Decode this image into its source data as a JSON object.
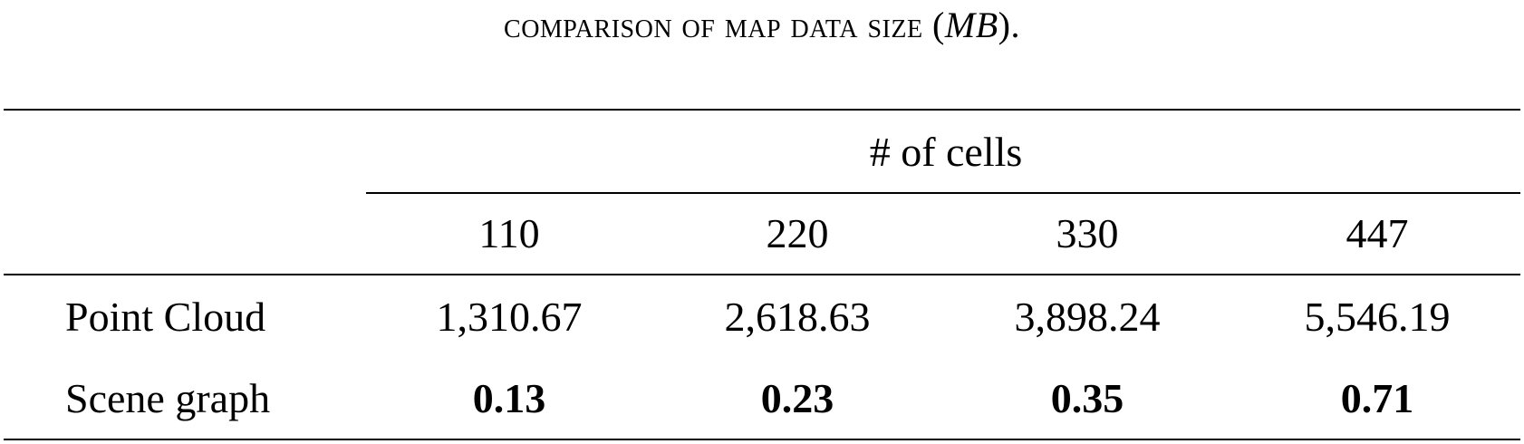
{
  "caption": {
    "text": "comparison of map data size (",
    "math": "MB",
    "suffix": ")."
  },
  "table": {
    "group_header": "# of cells",
    "columns": [
      "110",
      "220",
      "330",
      "447"
    ],
    "rows": [
      {
        "label": "Point Cloud",
        "values": [
          "1,310.67",
          "2,618.63",
          "3,898.24",
          "5,546.19"
        ]
      },
      {
        "label": "Scene graph",
        "values": [
          "0.13",
          "0.23",
          "0.35",
          "0.71"
        ]
      }
    ]
  }
}
